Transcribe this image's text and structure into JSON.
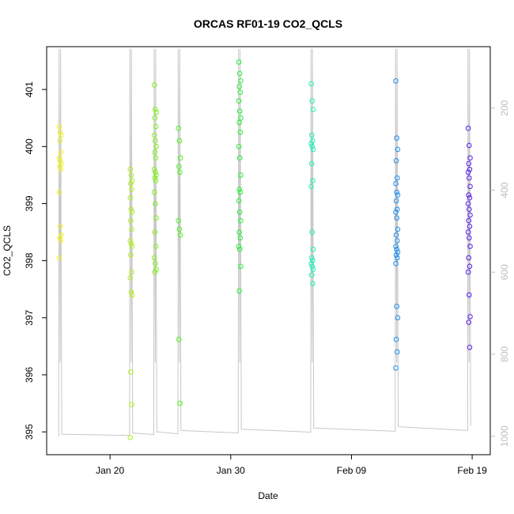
{
  "chart_data": {
    "type": "scatter",
    "title": "ORCAS RF01-19 CO2_QCLS",
    "xlabel": "Date",
    "ylabel": "CO2_QCLS",
    "x_ticks": [
      {
        "date": "2016-01-20",
        "label": "Jan 20"
      },
      {
        "date": "2016-01-30",
        "label": "Jan 30"
      },
      {
        "date": "2016-02-09",
        "label": "Feb 09"
      },
      {
        "date": "2016-02-19",
        "label": "Feb 19"
      }
    ],
    "xlim": [
      "2016-01-14T18:00",
      "2016-02-20T12:00"
    ],
    "ylim": [
      394.6,
      401.75
    ],
    "y_ticks": [
      395,
      396,
      397,
      398,
      399,
      400,
      401
    ],
    "y2_ticks": [
      200,
      400,
      600,
      800,
      1000
    ],
    "y2lim": [
      1045,
      50
    ],
    "y2_color": "#bdbdbd",
    "grid": false,
    "marker": "open-circle",
    "pressure_trace_color": "#c8c8c8",
    "flights": [
      {
        "date": "2016-01-15T21:00",
        "color": "#f2f21a",
        "co2": [
          400.35,
          400.25,
          400.2,
          400.1,
          399.9,
          399.8,
          399.75,
          399.7,
          399.65,
          399.6,
          399.2,
          398.6,
          398.45,
          398.4,
          398.35,
          398.05
        ]
      },
      {
        "date": "2016-01-21T18:00",
        "color": "#aef21a",
        "co2": [
          399.6,
          399.5,
          399.4,
          399.35,
          399.25,
          399.1,
          398.9,
          398.85,
          398.7,
          398.55,
          398.35,
          398.3,
          398.25,
          398.1,
          397.8,
          397.7,
          397.45,
          397.4,
          396.05,
          395.48,
          394.9
        ]
      },
      {
        "date": "2016-01-23T18:00",
        "color": "#7ef21a",
        "co2": [
          401.08,
          400.65,
          400.6,
          400.5,
          400.35,
          400.2,
          400.1,
          400.0,
          399.9,
          399.8,
          399.6,
          399.55,
          399.5,
          399.45,
          399.4,
          399.2,
          399.0,
          398.75,
          398.5,
          398.25,
          398.05,
          397.95,
          397.85,
          397.8
        ]
      },
      {
        "date": "2016-01-25T18:00",
        "color": "#4ef21a",
        "co2": [
          400.32,
          400.1,
          399.8,
          399.65,
          399.55,
          398.7,
          398.55,
          398.45,
          396.62,
          395.5
        ]
      },
      {
        "date": "2016-01-30T18:00",
        "color": "#22f230",
        "co2": [
          401.48,
          401.28,
          401.15,
          401.05,
          400.95,
          400.8,
          400.62,
          400.5,
          400.42,
          400.25,
          400.0,
          399.8,
          399.5,
          399.25,
          399.2,
          399.05,
          398.85,
          398.7,
          398.5,
          398.4,
          398.25,
          398.2,
          397.9,
          397.47
        ]
      },
      {
        "date": "2016-02-05T18:00",
        "color": "#1af2b4",
        "co2": [
          401.1,
          400.8,
          400.65,
          400.2,
          400.1,
          400.05,
          400.0,
          399.95,
          399.7,
          399.4,
          399.3,
          398.5,
          398.2,
          398.05,
          398.0,
          397.95,
          397.9,
          397.85,
          397.75,
          397.6
        ]
      },
      {
        "date": "2016-02-12T18:00",
        "color": "#1a8ef2",
        "co2": [
          401.15,
          400.15,
          399.95,
          399.75,
          399.45,
          399.35,
          399.2,
          399.15,
          399.05,
          398.9,
          398.85,
          398.75,
          398.55,
          398.45,
          398.35,
          398.25,
          398.2,
          398.15,
          398.1,
          398.05,
          397.95,
          397.2,
          397.0,
          396.62,
          396.4,
          396.12
        ]
      },
      {
        "date": "2016-02-18T18:00",
        "color": "#5a1af2",
        "co2": [
          400.32,
          400.02,
          399.8,
          399.7,
          399.6,
          399.55,
          399.45,
          399.3,
          399.15,
          399.1,
          399.0,
          398.9,
          398.8,
          398.7,
          398.6,
          398.5,
          398.4,
          398.25,
          398.05,
          397.9,
          397.8,
          397.4,
          397.02,
          396.92,
          396.48
        ]
      }
    ]
  }
}
